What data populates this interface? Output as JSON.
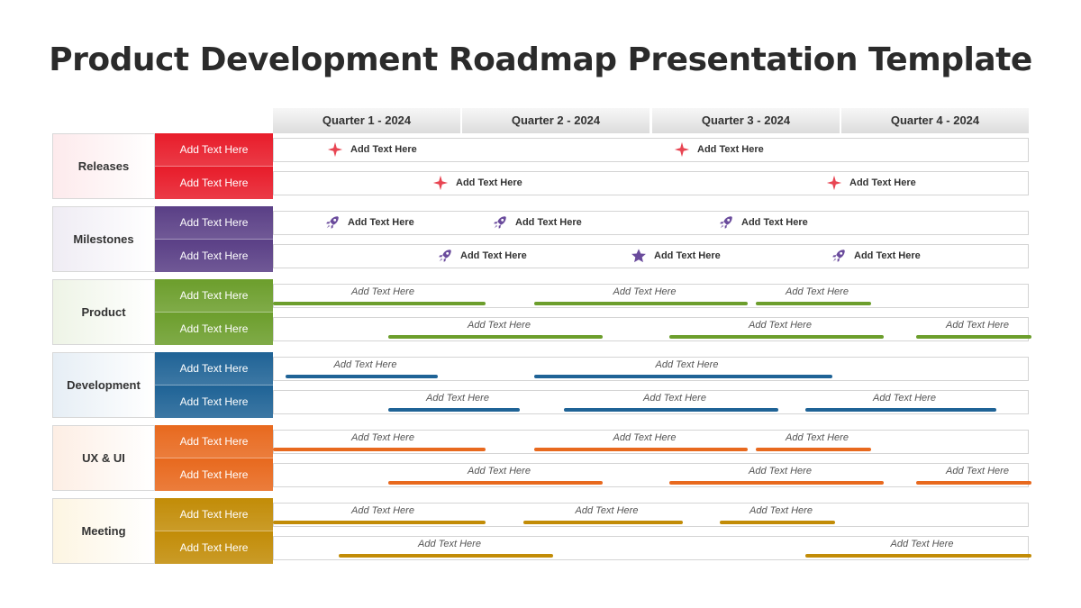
{
  "title": "Product Development Roadmap Presentation Template",
  "quarters": [
    "Quarter 1 - 2024",
    "Quarter 2 - 2024",
    "Quarter 3 - 2024",
    "Quarter 4 - 2024"
  ],
  "placeholder": "Add Text Here",
  "colors": {
    "releases": "#e81c2a",
    "milestones": "#5a3f86",
    "product": "#6c9e2c",
    "development": "#1f6396",
    "ux": "#e8691e",
    "meeting": "#c28c07",
    "sparkle": "#e84552",
    "rocket": "#6a4b9c"
  },
  "categories": [
    {
      "key": "releases",
      "label": "Releases",
      "bg": "#fdeaec",
      "style": "icons",
      "icon": "sparkle-icon",
      "subs": [
        "Add Text Here",
        "Add Text Here"
      ],
      "rows": [
        [
          {
            "icon": "sparkle-icon",
            "label": "Add Text Here"
          },
          {
            "icon": "sparkle-icon",
            "label": "Add Text Here"
          }
        ],
        [
          {
            "icon": "sparkle-icon",
            "label": "Add Text Here"
          },
          {
            "icon": "sparkle-icon",
            "label": "Add Text Here"
          }
        ]
      ]
    },
    {
      "key": "milestones",
      "label": "Milestones",
      "bg": "#efecf4",
      "style": "icons",
      "subs": [
        "Add Text Here",
        "Add Text Here"
      ],
      "rows": [
        [
          {
            "icon": "rocket-icon",
            "label": "Add Text Here"
          },
          {
            "icon": "rocket-icon",
            "label": "Add Text Here"
          },
          {
            "icon": "rocket-icon",
            "label": "Add Text Here"
          }
        ],
        [
          {
            "icon": "rocket-icon",
            "label": "Add Text Here"
          },
          {
            "icon": "star-icon",
            "label": "Add Text Here"
          },
          {
            "icon": "rocket-icon",
            "label": "Add Text Here"
          }
        ]
      ]
    },
    {
      "key": "product",
      "label": "Product",
      "bg": "#eef4e6",
      "style": "bars",
      "subs": [
        "Add Text Here",
        "Add Text Here"
      ],
      "rows": [
        [
          {
            "label": "Add Text Here"
          },
          {
            "label": "Add Text Here"
          },
          {
            "label": "Add Text Here"
          }
        ],
        [
          {
            "label": "Add Text Here"
          },
          {
            "label": "Add Text Here"
          },
          {
            "label": "Add Text Here"
          }
        ]
      ]
    },
    {
      "key": "development",
      "label": "Development",
      "bg": "#e6eef5",
      "style": "bars",
      "subs": [
        "Add Text Here",
        "Add Text Here"
      ],
      "rows": [
        [
          {
            "label": "Add Text Here"
          },
          {
            "label": "Add Text Here"
          }
        ],
        [
          {
            "label": "Add Text Here"
          },
          {
            "label": "Add Text Here"
          },
          {
            "label": "Add Text Here"
          }
        ]
      ]
    },
    {
      "key": "ux",
      "label": "UX & UI",
      "bg": "#fdeee4",
      "style": "bars",
      "subs": [
        "Add Text Here",
        "Add Text Here"
      ],
      "rows": [
        [
          {
            "label": "Add Text Here"
          },
          {
            "label": "Add Text Here"
          },
          {
            "label": "Add Text Here"
          }
        ],
        [
          {
            "label": "Add Text Here"
          },
          {
            "label": "Add Text Here"
          },
          {
            "label": "Add Text Here"
          }
        ]
      ]
    },
    {
      "key": "meeting",
      "label": "Meeting",
      "bg": "#fdf5e2",
      "style": "bars",
      "subs": [
        "Add Text Here",
        "Add Text Here"
      ],
      "rows": [
        [
          {
            "label": "Add Text Here"
          },
          {
            "label": "Add Text Here"
          },
          {
            "label": "Add Text Here"
          }
        ],
        [
          {
            "label": "Add Text Here"
          },
          {
            "label": "Add Text Here"
          }
        ]
      ]
    }
  ]
}
